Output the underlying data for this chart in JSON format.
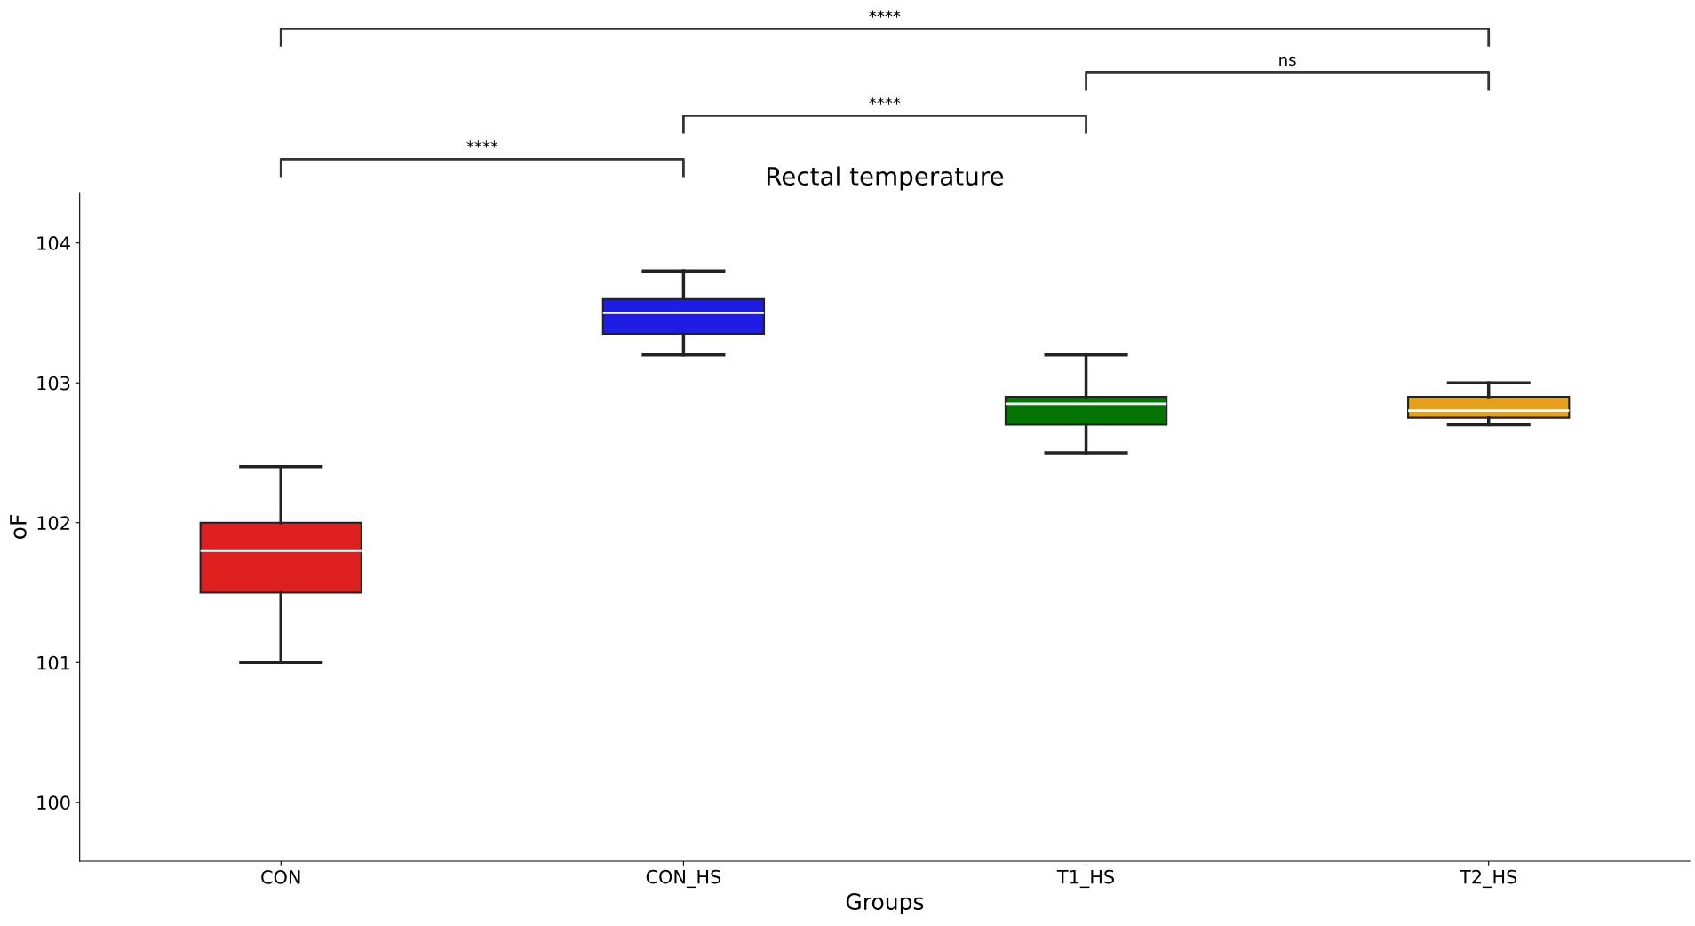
{
  "chart_data": {
    "type": "box",
    "title": "Rectal temperature",
    "xlabel": "Groups",
    "ylabel": "oF",
    "categories": [
      "CON",
      "CON_HS",
      "T1_HS",
      "T2_HS"
    ],
    "colors": [
      "#de1f1f",
      "#1d1de6",
      "#057505",
      "#e6a11c"
    ],
    "boxes": [
      {
        "low": 101.0,
        "q1": 101.5,
        "median": 101.8,
        "q3": 102.0,
        "high": 102.4
      },
      {
        "low": 103.2,
        "q1": 103.35,
        "median": 103.5,
        "q3": 103.6,
        "high": 103.8
      },
      {
        "low": 102.5,
        "q1": 102.7,
        "median": 102.85,
        "q3": 102.9,
        "high": 103.2
      },
      {
        "low": 102.7,
        "q1": 102.75,
        "median": 102.8,
        "q3": 102.9,
        "high": 103.0
      }
    ],
    "ylim": [
      99.58,
      104.36
    ],
    "yticks": [
      100,
      101,
      102,
      103,
      104
    ],
    "grid": false,
    "annotations": [
      "****",
      "****",
      "ns",
      "****"
    ]
  }
}
